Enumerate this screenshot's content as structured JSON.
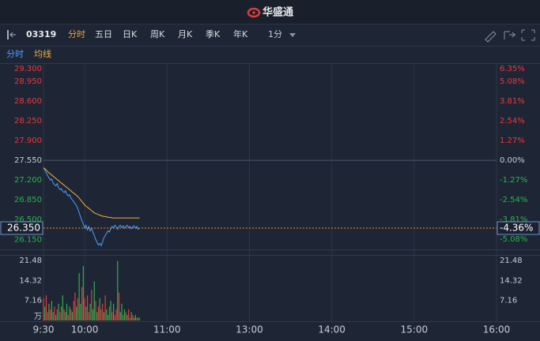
{
  "app": {
    "logo": "华盛通",
    "code": "03319",
    "tabs": [
      "分时",
      "五日",
      "日K",
      "周K",
      "月K",
      "季K",
      "年K"
    ],
    "interval": "1分"
  },
  "chart_data": [
    {
      "type": "line",
      "xlim": [
        0,
        330
      ],
      "xticks": [
        {
          "value": 0,
          "label": "9:30"
        },
        {
          "value": 30,
          "label": "10:00"
        },
        {
          "value": 90,
          "label": "11:00"
        },
        {
          "value": 150,
          "label": "13:00"
        },
        {
          "value": 210,
          "label": "14:00"
        },
        {
          "value": 270,
          "label": "15:00"
        },
        {
          "value": 330,
          "label": "16:00"
        }
      ],
      "ylim": [
        26.0,
        29.3
      ],
      "yticks": [
        {
          "value": 29.3,
          "label": "29.300"
        },
        {
          "value": 28.95,
          "label": "28.950"
        },
        {
          "value": 28.6,
          "label": "28.600"
        },
        {
          "value": 28.25,
          "label": "28.250"
        },
        {
          "value": 27.9,
          "label": "27.900"
        },
        {
          "value": 27.55,
          "label": "27.550"
        },
        {
          "value": 27.2,
          "label": "27.200"
        },
        {
          "value": 26.85,
          "label": "26.850"
        },
        {
          "value": 26.5,
          "label": "26.500"
        },
        {
          "value": 26.15,
          "label": "26.150"
        }
      ],
      "y2lim": [
        -5.63,
        6.35
      ],
      "y2ticks": [
        {
          "value": 6.35,
          "label": "6.35%"
        },
        {
          "value": 5.08,
          "label": "5.08%"
        },
        {
          "value": 3.81,
          "label": "3.81%"
        },
        {
          "value": 2.54,
          "label": "2.54%"
        },
        {
          "value": 1.27,
          "label": "1.27%"
        },
        {
          "value": 0,
          "label": "0.00%"
        },
        {
          "value": -1.27,
          "label": "-1.27%"
        },
        {
          "value": -2.54,
          "label": "-2.54%"
        },
        {
          "value": -3.81,
          "label": "-3.81%"
        },
        {
          "value": -5.08,
          "label": "-5.08%"
        }
      ],
      "grid": false,
      "last_price": {
        "value": 26.35,
        "label": "26.350"
      },
      "last_change": {
        "value": -4.36,
        "label": "-4.36%"
      },
      "x": [
        0,
        1,
        2,
        3,
        4,
        5,
        6,
        7,
        8,
        9,
        10,
        11,
        12,
        13,
        14,
        15,
        16,
        17,
        18,
        19,
        20,
        21,
        22,
        23,
        24,
        25,
        26,
        27,
        28,
        29,
        30,
        31,
        32,
        33,
        34,
        35,
        36,
        37,
        38,
        39,
        40,
        41,
        42,
        43,
        44,
        45,
        46,
        47,
        48,
        49,
        50,
        51,
        52,
        53,
        54,
        55,
        56,
        57,
        58,
        59,
        60,
        61,
        62,
        63,
        64,
        65,
        66,
        67,
        68,
        69,
        70
      ],
      "series": [
        {
          "name": "分时",
          "color": "#4a9eff",
          "values": [
            27.42,
            27.38,
            27.33,
            27.28,
            27.24,
            27.2,
            27.22,
            27.15,
            27.12,
            27.1,
            27.14,
            27.06,
            27.03,
            27.05,
            27.0,
            26.98,
            27.01,
            26.95,
            26.92,
            26.94,
            26.88,
            26.85,
            26.82,
            26.78,
            26.75,
            26.7,
            26.62,
            26.55,
            26.48,
            26.42,
            26.35,
            26.4,
            26.32,
            26.38,
            26.3,
            26.35,
            26.28,
            26.22,
            26.15,
            26.1,
            26.05,
            26.08,
            26.04,
            26.1,
            26.18,
            26.22,
            26.26,
            26.3,
            26.28,
            26.34,
            26.38,
            26.35,
            26.4,
            26.37,
            26.33,
            26.38,
            26.4,
            26.36,
            26.39,
            26.35,
            26.38,
            26.4,
            26.36,
            26.38,
            26.34,
            26.37,
            26.39,
            26.35,
            26.38,
            26.33,
            26.35
          ]
        },
        {
          "name": "均线",
          "color": "#f0b13a",
          "values": [
            27.42,
            27.4,
            27.38,
            27.35,
            27.33,
            27.31,
            27.29,
            27.27,
            27.25,
            27.23,
            27.21,
            27.19,
            27.17,
            27.15,
            27.13,
            27.11,
            27.09,
            27.07,
            27.05,
            27.03,
            27.01,
            26.99,
            26.97,
            26.95,
            26.93,
            26.91,
            26.88,
            26.85,
            26.82,
            26.79,
            26.76,
            26.74,
            26.72,
            26.7,
            26.68,
            26.66,
            26.64,
            26.62,
            26.61,
            26.6,
            26.59,
            26.58,
            26.57,
            26.56,
            26.56,
            26.55,
            26.55,
            26.54,
            26.54,
            26.54,
            26.53,
            26.53,
            26.53,
            26.53,
            26.53,
            26.53,
            26.53,
            26.53,
            26.53,
            26.53,
            26.53,
            26.53,
            26.53,
            26.53,
            26.53,
            26.53,
            26.53,
            26.53,
            26.53,
            26.53,
            26.53
          ]
        }
      ]
    },
    {
      "type": "bar",
      "xlim": [
        0,
        330
      ],
      "ylim": [
        0,
        21.48
      ],
      "yticks": [
        {
          "value": 21.48,
          "label": "21.48"
        },
        {
          "value": 14.32,
          "label": "14.32"
        },
        {
          "value": 7.16,
          "label": "7.16"
        },
        {
          "value": 0,
          "label": "万"
        }
      ],
      "y2lim": [
        0,
        21.48
      ],
      "y2ticks": [
        {
          "value": 21.48,
          "label": "21.48"
        },
        {
          "value": 14.32,
          "label": "14.32"
        },
        {
          "value": 7.16,
          "label": "7.16"
        }
      ],
      "x": [
        0,
        1,
        2,
        3,
        4,
        5,
        6,
        7,
        8,
        9,
        10,
        11,
        12,
        13,
        14,
        15,
        16,
        17,
        18,
        19,
        20,
        21,
        22,
        23,
        24,
        25,
        26,
        27,
        28,
        29,
        30,
        31,
        32,
        33,
        34,
        35,
        36,
        37,
        38,
        39,
        40,
        41,
        42,
        43,
        44,
        45,
        46,
        47,
        48,
        49,
        50,
        51,
        52,
        53,
        54,
        55,
        56,
        57,
        58,
        59,
        60,
        61,
        62,
        63,
        64,
        65,
        66,
        67,
        68,
        69,
        70
      ],
      "values": [
        8,
        5,
        9,
        3,
        6,
        4,
        7,
        3,
        5,
        2,
        4,
        6,
        3,
        5,
        9,
        4,
        3,
        6,
        2,
        5,
        4,
        3,
        7,
        10,
        5,
        8,
        17,
        6,
        12,
        19.5,
        8,
        5,
        9,
        3,
        6,
        11,
        4,
        14,
        7,
        3,
        5,
        8,
        4,
        6,
        3,
        9,
        4,
        2,
        5,
        7,
        3,
        6,
        2,
        4,
        21.3,
        10,
        3,
        6,
        2,
        4,
        3,
        2,
        4,
        1,
        3,
        2,
        1,
        2,
        1,
        1,
        1
      ],
      "colors": [
        "#e8383d",
        "#2ab24b",
        "#e8383d",
        "#e8383d",
        "#2ab24b",
        "#e8383d",
        "#2ab24b",
        "#2ab24b",
        "#e8383d",
        "#2ab24b",
        "#e8383d",
        "#2ab24b",
        "#e8383d",
        "#e8383d",
        "#2ab24b",
        "#e8383d",
        "#2ab24b",
        "#2ab24b",
        "#e8383d",
        "#2ab24b",
        "#e8383d",
        "#2ab24b",
        "#e8383d",
        "#e8383d",
        "#2ab24b",
        "#e8383d",
        "#2ab24b",
        "#2ab24b",
        "#e8383d",
        "#2ab24b",
        "#e8383d",
        "#2ab24b",
        "#e8383d",
        "#e8383d",
        "#2ab24b",
        "#e8383d",
        "#2ab24b",
        "#2ab24b",
        "#e8383d",
        "#2ab24b",
        "#e8383d",
        "#2ab24b",
        "#e8383d",
        "#e8383d",
        "#2ab24b",
        "#e8383d",
        "#2ab24b",
        "#2ab24b",
        "#e8383d",
        "#2ab24b",
        "#e8383d",
        "#2ab24b",
        "#e8383d",
        "#e8383d",
        "#2ab24b",
        "#e8383d",
        "#2ab24b",
        "#2ab24b",
        "#e8383d",
        "#2ab24b",
        "#e8383d",
        "#2ab24b",
        "#e8383d",
        "#e8383d",
        "#2ab24b",
        "#e8383d",
        "#2ab24b",
        "#2ab24b",
        "#e8383d",
        "#2ab24b",
        "#e8383d"
      ]
    }
  ]
}
